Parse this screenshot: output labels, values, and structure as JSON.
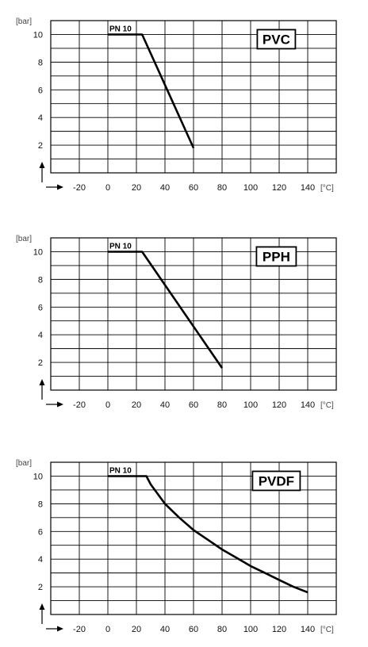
{
  "chart_data": [
    {
      "type": "line",
      "y_unit_label": "[bar]",
      "x_unit_label": "[°C]",
      "badge": "PVC",
      "pn_label": "PN 10",
      "x_ticks": [
        -20,
        0,
        20,
        40,
        60,
        80,
        100,
        120,
        140
      ],
      "y_ticks": [
        2,
        4,
        6,
        8,
        10
      ],
      "xlim": [
        -40,
        160
      ],
      "ylim": [
        0,
        11
      ],
      "series": [
        {
          "points": [
            [
              0,
              10
            ],
            [
              24,
              10
            ],
            [
              60,
              1.8
            ]
          ]
        }
      ]
    },
    {
      "type": "line",
      "y_unit_label": "[bar]",
      "x_unit_label": "[°C]",
      "badge": "PPH",
      "pn_label": "PN 10",
      "x_ticks": [
        -20,
        0,
        20,
        40,
        60,
        80,
        100,
        120,
        140
      ],
      "y_ticks": [
        2,
        4,
        6,
        8,
        10
      ],
      "xlim": [
        -40,
        160
      ],
      "ylim": [
        0,
        11
      ],
      "series": [
        {
          "points": [
            [
              0,
              10
            ],
            [
              24,
              10
            ],
            [
              80,
              1.6
            ]
          ]
        }
      ]
    },
    {
      "type": "line",
      "y_unit_label": "[bar]",
      "x_unit_label": "[°C]",
      "badge": "PVDF",
      "pn_label": "PN 10",
      "x_ticks": [
        -20,
        0,
        20,
        40,
        60,
        80,
        100,
        120,
        140
      ],
      "y_ticks": [
        2,
        4,
        6,
        8,
        10
      ],
      "xlim": [
        -40,
        160
      ],
      "ylim": [
        0,
        11
      ],
      "series": [
        {
          "points": [
            [
              0,
              10
            ],
            [
              27,
              10
            ],
            [
              30,
              9.4
            ],
            [
              40,
              8
            ],
            [
              50,
              7
            ],
            [
              60,
              6.1
            ],
            [
              70,
              5.4
            ],
            [
              80,
              4.7
            ],
            [
              90,
              4.1
            ],
            [
              100,
              3.5
            ],
            [
              110,
              3.0
            ],
            [
              120,
              2.5
            ],
            [
              130,
              2.0
            ],
            [
              140,
              1.6
            ]
          ]
        }
      ]
    }
  ]
}
